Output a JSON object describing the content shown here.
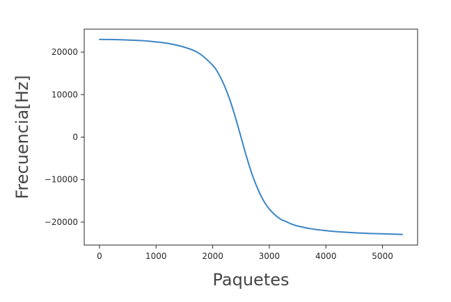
{
  "chart_data": {
    "type": "line",
    "title": "",
    "xlabel": "Paquetes",
    "ylabel": "Frecuencia[Hz]",
    "xlim": [
      -270,
      5620
    ],
    "ylim": [
      -25400,
      25400
    ],
    "xticks": [
      0,
      1000,
      2000,
      3000,
      4000,
      5000
    ],
    "xtick_labels": [
      "0",
      "1000",
      "2000",
      "3000",
      "4000",
      "5000"
    ],
    "yticks": [
      20000,
      10000,
      0,
      -10000,
      -20000
    ],
    "ytick_labels": [
      "20000",
      "10000",
      "0",
      "−10000",
      "−20000"
    ],
    "grid": false,
    "legend": "none",
    "series": [
      {
        "color": "#3a85c3",
        "x": [
          0,
          250,
          500,
          750,
          1000,
          1250,
          1500,
          1750,
          2000,
          2100,
          2200,
          2300,
          2400,
          2500,
          2600,
          2700,
          2800,
          2900,
          3000,
          3100,
          3200,
          3300,
          3400,
          3500,
          3750,
          4000,
          4250,
          4500,
          4750,
          5000,
          5250,
          5350
        ],
        "y": [
          23000,
          22950,
          22850,
          22700,
          22400,
          21950,
          21150,
          19800,
          16900,
          15000,
          12300,
          8900,
          4700,
          0,
          -4700,
          -8900,
          -12300,
          -15000,
          -16900,
          -18300,
          -19300,
          -19900,
          -20500,
          -20900,
          -21600,
          -22000,
          -22300,
          -22500,
          -22650,
          -22750,
          -22850,
          -22900
        ]
      }
    ]
  }
}
